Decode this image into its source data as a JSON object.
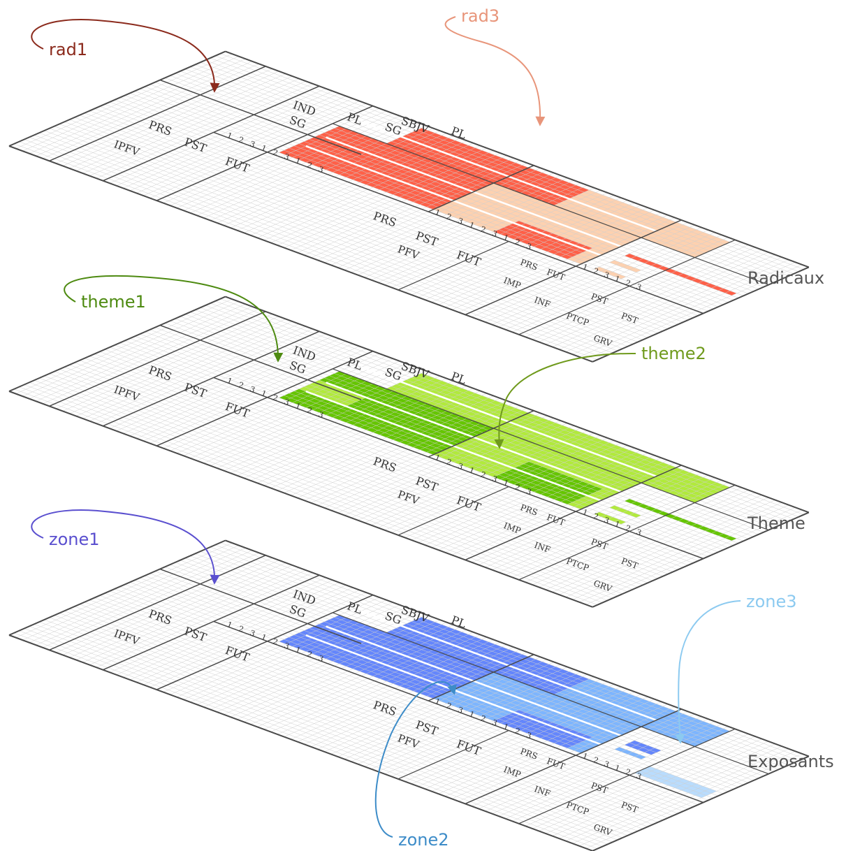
{
  "colors": {
    "rad1": "#fe6048",
    "rad3": "#fdd1b0",
    "theme1": "#65c500",
    "theme2": "#b1ea3c",
    "zone1": "#6486fc",
    "zone2": "#7db5fe",
    "zone3": "#b9dcfd",
    "label_rad1": "#8b2a1c",
    "label_rad3": "#e8957a",
    "label_theme1": "#4d8a10",
    "label_theme2": "#6f9a1c",
    "label_zone1": "#5a4fcf",
    "label_zone2": "#3d8cc8",
    "label_zone3": "#8ccaf0",
    "line": "#4a4a4a",
    "grid": "#cfcfcf"
  },
  "grid": {
    "header_moods": [
      "IND",
      "SBJV"
    ],
    "header_numbers": [
      "SG",
      "PL",
      "SG",
      "PL"
    ],
    "person_labels": [
      "1",
      "2",
      "3"
    ],
    "tense_labels": [
      "PRS",
      "PST",
      "FUT"
    ],
    "aspect_labels": [
      "IPFV",
      "PFV"
    ],
    "imp_labels": [
      "PRS",
      "FUT"
    ],
    "imp_group": "IMP",
    "nonfinite_labels": [
      "PST",
      "PST"
    ],
    "nonfinite_groups": [
      "INF",
      "PTCP",
      "GRV"
    ]
  },
  "layers": [
    {
      "title": "Radicaux",
      "callouts": [
        "rad1",
        "rad3"
      ]
    },
    {
      "title": "Theme",
      "callouts": [
        "theme1",
        "theme2"
      ]
    },
    {
      "title": "Exposants",
      "callouts": [
        "zone1",
        "zone2",
        "zone3"
      ]
    }
  ]
}
